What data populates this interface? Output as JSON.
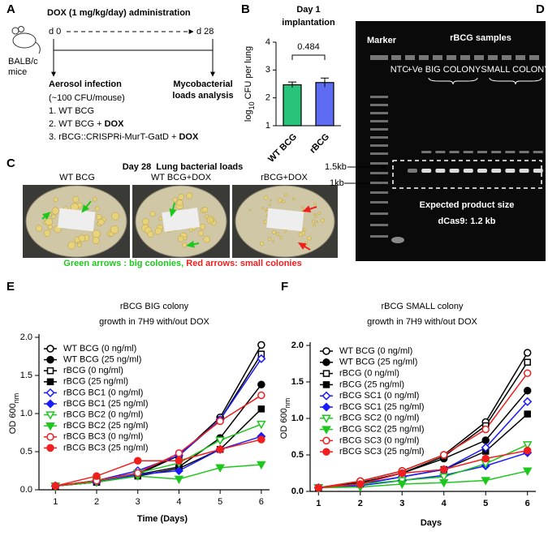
{
  "panel_a": {
    "label": "A",
    "title": "DOX (1 mg/kg/day) administration",
    "start": "d 0",
    "end": "d 28",
    "host": [
      "BALB/c",
      "mice"
    ],
    "infection": "Aerosol infection",
    "dose": "(~100 CFU/mouse)",
    "groups": [
      [
        "1. WT BCG"
      ],
      [
        "2. WT BCG + ",
        "DOX"
      ],
      [
        "3. rBCG::CRISPRi-MurT-GatD + ",
        "DOX"
      ]
    ],
    "analysis": [
      "Mycobacterial",
      "loads analysis"
    ]
  },
  "panel_c": {
    "label": "C",
    "title": "Day 28  Lung bacterial loads",
    "plates": [
      "WT BCG",
      "WT BCG+DOX",
      "rBCG+DOX"
    ],
    "legend_green": "Green arrows : big colonies,",
    "legend_red": " Red arrows: small colonies"
  },
  "panel_d": {
    "label": "D",
    "marker": "Marker",
    "samples": "rBCG samples",
    "ntc": "NTC",
    "positive": "+Ve",
    "big": "BIG COLONY",
    "small": "SMALL COLONY",
    "sizes": [
      "1.5kb",
      "1kb"
    ],
    "product": [
      "Expected product size",
      "dCas9: 1.2 kb"
    ]
  },
  "chart_data": [
    {
      "type": "bar",
      "panel_label": "B",
      "title": [
        "Day 1",
        "implantation"
      ],
      "categories": [
        "WT BCG",
        "rBCG"
      ],
      "values": [
        2.47,
        2.55
      ],
      "errors": [
        0.1,
        0.16
      ],
      "colors": [
        "#27c47a",
        "#5d6cf2"
      ],
      "ylabel": [
        "log",
        "10",
        " CFU per lung"
      ],
      "ylim": [
        1,
        4
      ],
      "yticks": [
        1,
        2,
        3,
        4
      ],
      "annotation": "0.484"
    },
    {
      "type": "line",
      "panel_label": "E",
      "title": [
        "rBCG BIG colony",
        "growth in 7H9 with/out DOX"
      ],
      "xlabel": "Time (Days)",
      "ylabel": [
        "OD 600",
        "nm"
      ],
      "x": [
        1,
        2,
        3,
        4,
        5,
        6
      ],
      "xlim": [
        0.6,
        6.2
      ],
      "ylim": [
        0,
        2
      ],
      "xticks": [
        1,
        2,
        3,
        4,
        5,
        6
      ],
      "yticks": [
        {
          "value": 0,
          "label": "0.0"
        },
        {
          "value": 0.5,
          "label": "0.5"
        },
        {
          "value": 1,
          "label": "1.0"
        },
        {
          "value": 1.5,
          "label": "1.5"
        },
        {
          "value": 2,
          "label": "2.0"
        }
      ],
      "series": [
        {
          "name": "WT BCG (0 ng/ml)",
          "color": "#000000",
          "marker": "circle",
          "filled": false,
          "values": [
            0.05,
            0.12,
            0.22,
            0.45,
            0.95,
            1.9
          ]
        },
        {
          "name": "WT BCG (25 ng/ml)",
          "color": "#000000",
          "marker": "circle",
          "filled": true,
          "values": [
            0.05,
            0.1,
            0.2,
            0.3,
            0.68,
            1.38
          ]
        },
        {
          "name": "rBCG (0 ng/ml)",
          "color": "#000000",
          "marker": "square",
          "filled": false,
          "values": [
            0.05,
            0.1,
            0.2,
            0.45,
            0.92,
            1.78
          ]
        },
        {
          "name": "rBCG (25 ng/ml)",
          "color": "#000000",
          "marker": "square",
          "filled": true,
          "values": [
            0.05,
            0.1,
            0.18,
            0.28,
            0.53,
            1.06
          ]
        },
        {
          "name": "rBCG BC1 (0 ng/ml)",
          "color": "#1a1aff",
          "marker": "diamond",
          "filled": false,
          "values": [
            0.05,
            0.12,
            0.25,
            0.45,
            0.92,
            1.72
          ]
        },
        {
          "name": "rBCG BC1 (25 ng/ml)",
          "color": "#1a1aff",
          "marker": "diamond",
          "filled": true,
          "values": [
            0.05,
            0.1,
            0.2,
            0.25,
            0.53,
            0.7
          ]
        },
        {
          "name": "rBCG BC2 (0 ng/ml)",
          "color": "#1ec71e",
          "marker": "triangle",
          "filled": false,
          "values": [
            0.05,
            0.12,
            0.22,
            0.35,
            0.65,
            0.86
          ]
        },
        {
          "name": "rBCG BC2 (25 ng/ml)",
          "color": "#1ec71e",
          "marker": "triangle",
          "filled": true,
          "values": [
            0.05,
            0.1,
            0.18,
            0.14,
            0.29,
            0.33
          ]
        },
        {
          "name": "rBCG BC3 (0 ng/ml)",
          "color": "#f01e1e",
          "marker": "circle",
          "filled": false,
          "values": [
            0.05,
            0.12,
            0.22,
            0.48,
            0.9,
            1.24
          ]
        },
        {
          "name": "rBCG BC3 (25 ng/ml)",
          "color": "#f01e1e",
          "marker": "circle",
          "filled": true,
          "values": [
            0.05,
            0.18,
            0.38,
            0.38,
            0.53,
            0.66
          ]
        }
      ]
    },
    {
      "type": "line",
      "panel_label": "F",
      "title": [
        "rBCG SMALL colony",
        "growth in 7H9 with/out DOX"
      ],
      "xlabel": "Days",
      "ylabel": [
        "OD 600",
        "nm"
      ],
      "x": [
        1,
        2,
        3,
        4,
        5,
        6
      ],
      "xlim": [
        0.8,
        6.2
      ],
      "ylim": [
        0,
        2
      ],
      "xticks": [
        1,
        2,
        3,
        4,
        5,
        6
      ],
      "yticks": [
        {
          "value": 0,
          "label": "0.0"
        },
        {
          "value": 0.5,
          "label": "0.5"
        },
        {
          "value": 1,
          "label": "1.0"
        },
        {
          "value": 1.5,
          "label": "1.5"
        },
        {
          "value": 2,
          "label": "2.0"
        }
      ],
      "series": [
        {
          "name": "WT BCG (0 ng/ml)",
          "color": "#000000",
          "marker": "circle",
          "filled": false,
          "values": [
            0.05,
            0.14,
            0.28,
            0.5,
            0.95,
            1.9
          ]
        },
        {
          "name": "WT BCG (25 ng/ml)",
          "color": "#000000",
          "marker": "circle",
          "filled": true,
          "values": [
            0.05,
            0.12,
            0.25,
            0.45,
            0.7,
            1.38
          ]
        },
        {
          "name": "rBCG (0 ng/ml)",
          "color": "#000000",
          "marker": "square",
          "filled": false,
          "values": [
            0.05,
            0.12,
            0.25,
            0.48,
            0.9,
            1.77
          ]
        },
        {
          "name": "rBCG (25 ng/ml)",
          "color": "#000000",
          "marker": "square",
          "filled": true,
          "values": [
            0.05,
            0.1,
            0.2,
            0.3,
            0.55,
            1.06
          ]
        },
        {
          "name": "rBCG SC1 (0 ng/ml)",
          "color": "#1a1aff",
          "marker": "diamond",
          "filled": false,
          "values": [
            0.05,
            0.1,
            0.2,
            0.3,
            0.6,
            1.23
          ]
        },
        {
          "name": "rBCG SC1 (25 ng/ml)",
          "color": "#1a1aff",
          "marker": "diamond",
          "filled": true,
          "values": [
            0.05,
            0.08,
            0.15,
            0.22,
            0.35,
            0.53
          ]
        },
        {
          "name": "rBCG SC2 (0 ng/ml)",
          "color": "#1ec71e",
          "marker": "triangle",
          "filled": false,
          "values": [
            0.05,
            0.1,
            0.15,
            0.2,
            0.38,
            0.64
          ]
        },
        {
          "name": "rBCG SC2 (25 ng/ml)",
          "color": "#1ec71e",
          "marker": "triangle",
          "filled": true,
          "values": [
            0.05,
            0.06,
            0.1,
            0.12,
            0.15,
            0.28
          ]
        },
        {
          "name": "rBCG SC3 (0 ng/ml)",
          "color": "#f01e1e",
          "marker": "circle",
          "filled": false,
          "values": [
            0.05,
            0.14,
            0.28,
            0.5,
            0.85,
            1.62
          ]
        },
        {
          "name": "rBCG SC3 (25 ng/ml)",
          "color": "#f01e1e",
          "marker": "circle",
          "filled": true,
          "values": [
            0.05,
            0.1,
            0.25,
            0.3,
            0.45,
            0.56
          ]
        }
      ]
    }
  ]
}
